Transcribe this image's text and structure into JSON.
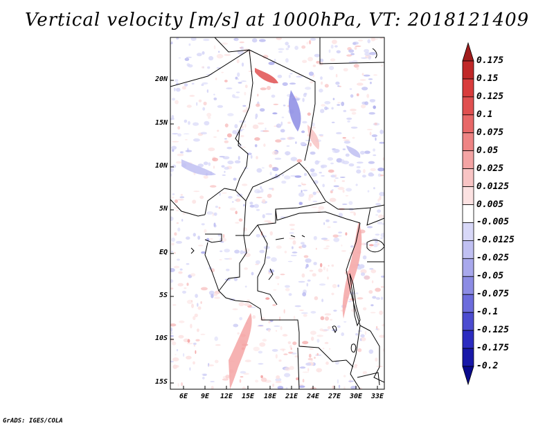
{
  "title": "Vertical velocity [m/s] at 1000hPa, VT: 2018121409",
  "credit": "GrADS: IGES/COLA",
  "map": {
    "lat_labels": [
      "20N",
      "15N",
      "10N",
      "5N",
      "EQ",
      "5S",
      "10S",
      "15S"
    ],
    "lon_labels": [
      "6E",
      "9E",
      "12E",
      "15E",
      "18E",
      "21E",
      "24E",
      "27E",
      "30E",
      "33E"
    ]
  },
  "colorbar": {
    "labels": [
      "0.175",
      "0.15",
      "0.125",
      "0.1",
      "0.075",
      "0.05",
      "0.025",
      "0.0125",
      "0.005",
      "-0.005",
      "-0.0125",
      "-0.025",
      "-0.05",
      "-0.075",
      "-0.1",
      "-0.125",
      "-0.175",
      "-0.2"
    ],
    "colors": [
      "#a01c1c",
      "#c02828",
      "#d83c3c",
      "#e05050",
      "#e86868",
      "#ee8484",
      "#f4a4a4",
      "#f8c4c4",
      "#fce2e2",
      "#ffffff",
      "#d8d8f8",
      "#c0c0f2",
      "#a8a8ec",
      "#8c8ce4",
      "#6c6cdc",
      "#4c4cd0",
      "#2c2cc0",
      "#1818a8",
      "#0a0a8c"
    ]
  }
}
